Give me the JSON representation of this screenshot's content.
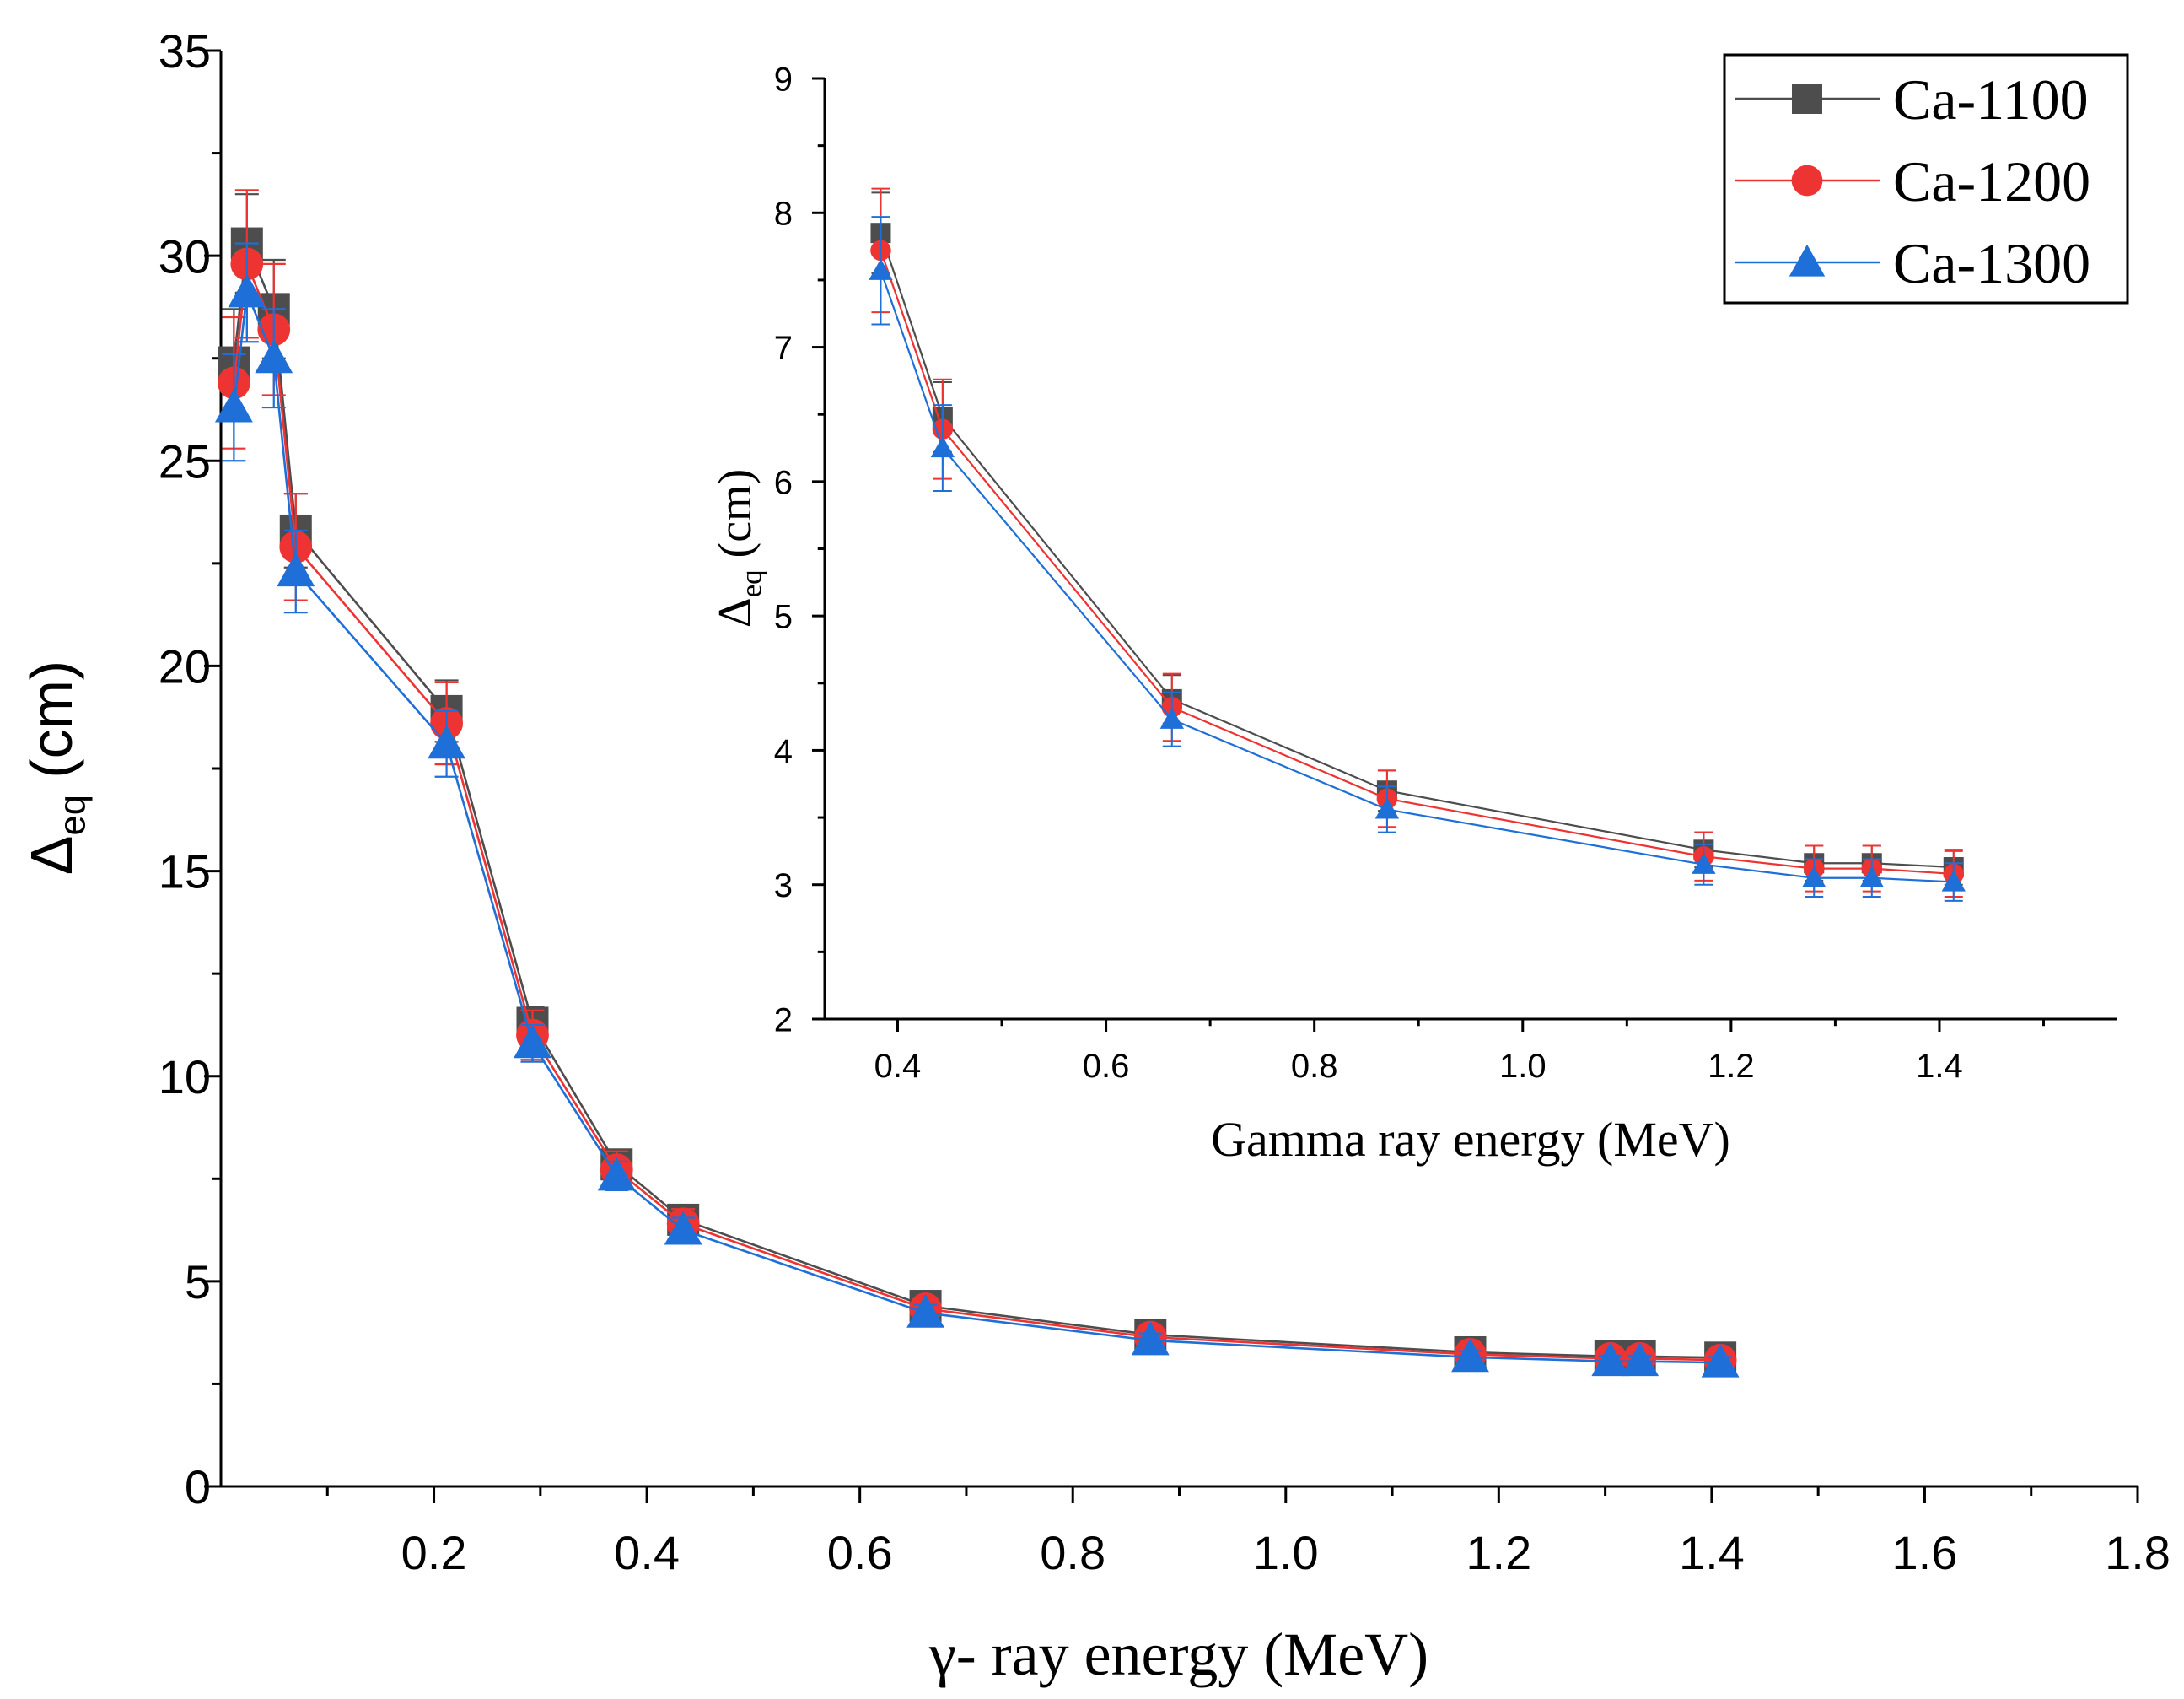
{
  "chart_data": [
    {
      "id": "main",
      "type": "line",
      "xlabel": "γ- ray energy (MeV)",
      "ylabel_main": "Δ",
      "ylabel_sub": "eq",
      "ylabel_unit": " (cm)",
      "xlim": [
        0,
        1.8
      ],
      "ylim": [
        0,
        35
      ],
      "xticks": [
        0.2,
        0.4,
        0.6,
        0.8,
        1.0,
        1.2,
        1.4,
        1.6,
        1.8
      ],
      "xtick_labels": [
        "0.2",
        "0.4",
        "0.6",
        "0.8",
        "1.0",
        "1.2",
        "1.4",
        "1.6",
        "1.8"
      ],
      "yticks": [
        0,
        5,
        10,
        15,
        20,
        25,
        30,
        35
      ],
      "ytick_labels": [
        "0",
        "5",
        "10",
        "15",
        "20",
        "25",
        "30",
        "35"
      ],
      "x": [
        0.0122,
        0.0244,
        0.0497,
        0.0703,
        0.2119,
        0.2926,
        0.3716,
        0.4341,
        0.6617,
        0.8729,
        1.1732,
        1.3049,
        1.3325,
        1.4081
      ],
      "series": [
        {
          "name": "Ca-1100",
          "color": "#4d4d4d",
          "marker": "square",
          "values": [
            27.4,
            30.3,
            28.7,
            23.3,
            18.9,
            11.3,
            7.85,
            6.5,
            4.4,
            3.7,
            3.27,
            3.17,
            3.17,
            3.14
          ],
          "errors": [
            1.3,
            1.2,
            1.2,
            0.9,
            0.75,
            0.4,
            0.3,
            0.26,
            0.18,
            0.15,
            0.13,
            0.13,
            0.13,
            0.13
          ]
        },
        {
          "name": "Ca-1200",
          "color": "#ee3333",
          "marker": "circle",
          "values": [
            26.9,
            29.8,
            28.2,
            22.9,
            18.6,
            11.0,
            7.72,
            6.4,
            4.33,
            3.64,
            3.22,
            3.12,
            3.12,
            3.08
          ],
          "errors": [
            1.6,
            1.8,
            1.6,
            1.3,
            1.0,
            0.6,
            0.45,
            0.36,
            0.25,
            0.2,
            0.18,
            0.17,
            0.17,
            0.17
          ]
        },
        {
          "name": "Ca-1300",
          "color": "#1f6fd8",
          "marker": "triangle",
          "values": [
            26.3,
            29.1,
            27.5,
            22.3,
            18.1,
            10.8,
            7.57,
            6.25,
            4.23,
            3.56,
            3.15,
            3.05,
            3.05,
            3.02
          ],
          "errors": [
            1.3,
            1.2,
            1.2,
            1.0,
            0.8,
            0.45,
            0.35,
            0.3,
            0.2,
            0.17,
            0.15,
            0.14,
            0.14,
            0.14
          ]
        }
      ]
    },
    {
      "id": "inset",
      "type": "line",
      "xlabel": "Gamma ray energy (MeV)",
      "ylabel_main": "Δ",
      "ylabel_sub": "eq",
      "ylabel_unit": " (cm)",
      "xlim": [
        0.33,
        1.57
      ],
      "ylim": [
        2,
        9
      ],
      "xticks": [
        0.4,
        0.6,
        0.8,
        1.0,
        1.2,
        1.4
      ],
      "xtick_labels": [
        "0.4",
        "0.6",
        "0.8",
        "1.0",
        "1.2",
        "1.4"
      ],
      "yticks": [
        2,
        3,
        4,
        5,
        6,
        7,
        8,
        9
      ],
      "ytick_labels": [
        "2",
        "3",
        "4",
        "5",
        "6",
        "7",
        "8",
        "9"
      ],
      "x": [
        0.3838,
        0.4432,
        0.6633,
        0.8698,
        1.1737,
        1.2796,
        1.3351,
        1.4136
      ],
      "series": [
        {
          "name": "Ca-1100",
          "color": "#4d4d4d",
          "marker": "square",
          "values": [
            7.85,
            6.48,
            4.38,
            3.7,
            3.26,
            3.16,
            3.16,
            3.13
          ],
          "errors": [
            0.3,
            0.26,
            0.18,
            0.15,
            0.13,
            0.13,
            0.13,
            0.13
          ]
        },
        {
          "name": "Ca-1200",
          "color": "#ee3333",
          "marker": "circle",
          "values": [
            7.72,
            6.39,
            4.32,
            3.64,
            3.21,
            3.12,
            3.12,
            3.08
          ],
          "errors": [
            0.46,
            0.37,
            0.25,
            0.21,
            0.18,
            0.17,
            0.17,
            0.17
          ]
        },
        {
          "name": "Ca-1300",
          "color": "#1f6fd8",
          "marker": "triangle",
          "values": [
            7.57,
            6.25,
            4.23,
            3.56,
            3.15,
            3.05,
            3.05,
            3.02
          ],
          "errors": [
            0.4,
            0.32,
            0.2,
            0.17,
            0.15,
            0.14,
            0.14,
            0.14
          ]
        }
      ]
    }
  ],
  "legend": {
    "placement": "top-right",
    "entries": [
      "Ca-1100",
      "Ca-1200",
      "Ca-1300"
    ]
  }
}
